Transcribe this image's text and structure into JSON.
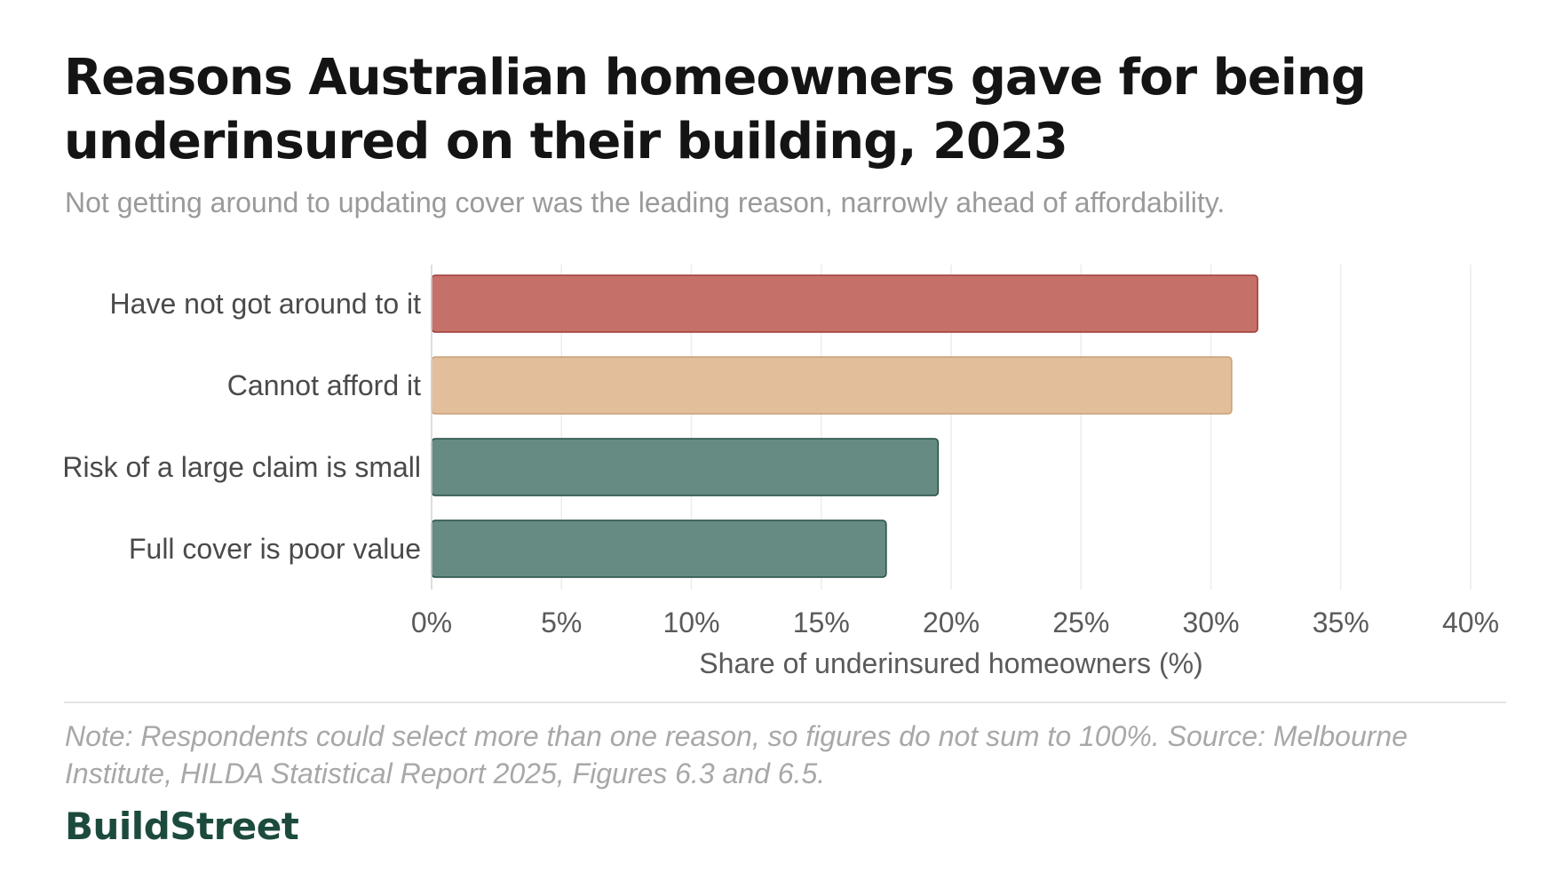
{
  "chart_data": {
    "type": "bar",
    "orientation": "horizontal",
    "title": "Reasons Australian homeowners gave for being underinsured on their building, 2023",
    "subtitle": "Not getting around to updating cover was the leading reason, narrowly ahead of affordability.",
    "categories": [
      "Have not got around to it",
      "Cannot afford it",
      "Risk of a large claim is small",
      "Full cover is poor value"
    ],
    "values": [
      31.8,
      30.8,
      19.5,
      17.5
    ],
    "colors": [
      "#c5716a",
      "#e2bf9a",
      "#668b82",
      "#668b82"
    ],
    "outline_colors": [
      "#9e3a36",
      "#c79f77",
      "#244f44",
      "#244f44"
    ],
    "xlabel": "Share of underinsured homeowners (%)",
    "ylabel": "",
    "xlim": [
      0,
      40
    ],
    "xticks": [
      0,
      5,
      10,
      15,
      20,
      25,
      30,
      35,
      40
    ],
    "xtick_labels": [
      "0%",
      "5%",
      "10%",
      "15%",
      "20%",
      "25%",
      "30%",
      "35%",
      "40%"
    ],
    "grid": true
  },
  "footer": {
    "note": "Note: Respondents could select more than one reason, so figures do not sum to 100%. Source: Melbourne Institute, HILDA Statistical Report 2025, Figures 6.3 and 6.5.",
    "brand": "BuildStreet"
  }
}
